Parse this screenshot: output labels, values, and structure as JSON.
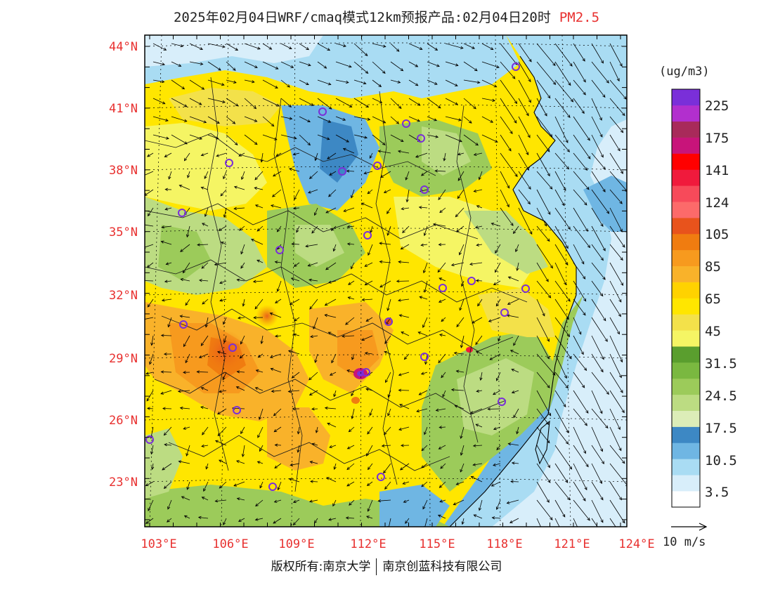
{
  "header": {
    "title": "2025年02月04日WRF/cmaq模式12km预报产品:02月04日20时",
    "species": "PM2.5"
  },
  "map": {
    "lat_labels": [
      "44°N",
      "41°N",
      "38°N",
      "35°N",
      "32°N",
      "29°N",
      "26°N",
      "23°N"
    ],
    "lon_labels": [
      "103°E",
      "106°E",
      "109°E",
      "112°E",
      "115°E",
      "118°E",
      "121°E",
      "124°E"
    ]
  },
  "colorbar": {
    "unit": "(ug/m3)",
    "colors": [
      "#ffffff",
      "#d8eefa",
      "#a9dcf3",
      "#6fb6e3",
      "#3d88c4",
      "#dcedb8",
      "#bcdc82",
      "#9ccb5a",
      "#7ab840",
      "#5a9e2e",
      "#f5f564",
      "#f3e14a",
      "#ffe600",
      "#ffd200",
      "#f9b22a",
      "#f79a1e",
      "#f07c10",
      "#e8531c",
      "#fc6a6a",
      "#f74a5a",
      "#f01a3c",
      "#ff0000",
      "#c8147a",
      "#a82a5a",
      "#b22fce",
      "#7a2fd9"
    ],
    "labels": [
      "3.5",
      "10.5",
      "17.5",
      "24.5",
      "31.5",
      "45",
      "65",
      "85",
      "105",
      "124",
      "141",
      "175",
      "225"
    ]
  },
  "legend": {
    "vector_label": "10 m/s"
  },
  "footer": {
    "copyright": "版权所有:南京大学",
    "company": "南京创蓝科技有限公司"
  }
}
